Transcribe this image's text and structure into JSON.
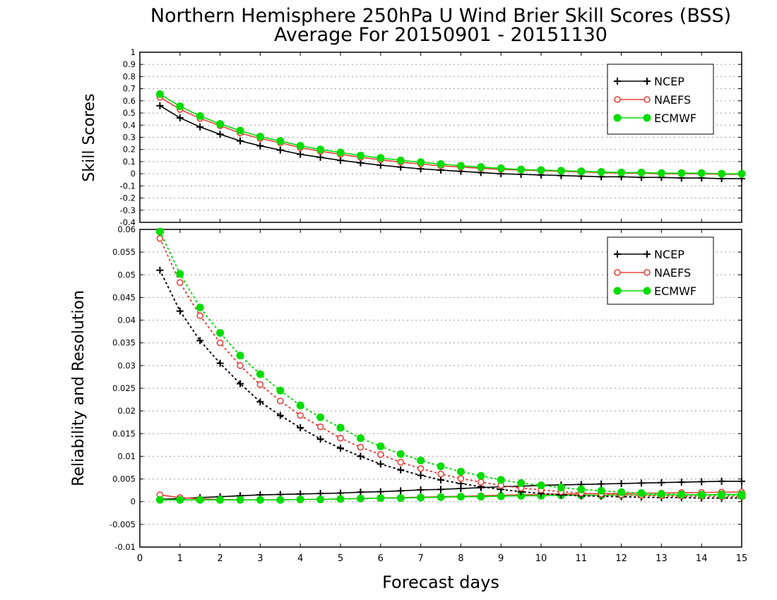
{
  "title_line1": "Northern Hemisphere 250hPa U Wind Brier Skill Scores (BSS)",
  "title_line2": "Average For 20150901 - 20151130",
  "xlabel": "Forecast days",
  "colors": {
    "NCEP": "#000000",
    "NAEFS": "#e8403a",
    "ECMWF": "#00dd00"
  },
  "chart_data": [
    {
      "type": "line",
      "ylabel": "Skill Scores",
      "xlim": [
        0,
        15
      ],
      "ylim": [
        -0.4,
        1
      ],
      "x_ticks": [
        0,
        1,
        2,
        3,
        4,
        5,
        6,
        7,
        8,
        9,
        10,
        11,
        12,
        13,
        14,
        15
      ],
      "y_ticks": [
        -0.4,
        -0.3,
        -0.2,
        -0.1,
        0,
        0.1,
        0.2,
        0.3,
        0.4,
        0.5,
        0.6,
        0.7,
        0.8,
        0.9,
        1
      ],
      "y_tick_labels": [
        "-0.4",
        "-0.3",
        "-0.2",
        "-0.1",
        "0",
        "0.1",
        "0.2",
        "0.3",
        "0.4",
        "0.5",
        "0.6",
        "0.7",
        "0.8",
        "0.9",
        "1"
      ],
      "grid": true,
      "legend_position": "top-right",
      "x": [
        0.5,
        1,
        1.5,
        2,
        2.5,
        3,
        3.5,
        4,
        4.5,
        5,
        5.5,
        6,
        6.5,
        7,
        7.5,
        8,
        8.5,
        9,
        9.5,
        10,
        10.5,
        11,
        11.5,
        12,
        12.5,
        13,
        13.5,
        14,
        14.5,
        15
      ],
      "series": [
        {
          "name": "NCEP",
          "marker": "plus",
          "style": "solid",
          "values": [
            0.56,
            0.46,
            0.385,
            0.325,
            0.27,
            0.23,
            0.195,
            0.16,
            0.135,
            0.11,
            0.09,
            0.07,
            0.055,
            0.04,
            0.03,
            0.02,
            0.01,
            0.0,
            -0.005,
            -0.01,
            -0.015,
            -0.02,
            -0.025,
            -0.025,
            -0.03,
            -0.03,
            -0.035,
            -0.035,
            -0.04,
            -0.04
          ]
        },
        {
          "name": "NAEFS",
          "marker": "circle-open",
          "style": "solid",
          "values": [
            0.63,
            0.53,
            0.455,
            0.395,
            0.335,
            0.29,
            0.255,
            0.215,
            0.185,
            0.16,
            0.135,
            0.115,
            0.095,
            0.08,
            0.065,
            0.055,
            0.045,
            0.035,
            0.03,
            0.025,
            0.02,
            0.015,
            0.01,
            0.005,
            0.005,
            0.0,
            0.0,
            0.0,
            -0.005,
            -0.005
          ]
        },
        {
          "name": "ECMWF",
          "marker": "circle-filled",
          "style": "solid",
          "values": [
            0.655,
            0.555,
            0.475,
            0.41,
            0.355,
            0.305,
            0.27,
            0.23,
            0.2,
            0.175,
            0.15,
            0.13,
            0.11,
            0.095,
            0.08,
            0.065,
            0.055,
            0.045,
            0.035,
            0.03,
            0.025,
            0.02,
            0.015,
            0.01,
            0.01,
            0.005,
            0.005,
            0.005,
            0.0,
            0.0
          ]
        }
      ]
    },
    {
      "type": "line",
      "ylabel": "Reliability and Resolution",
      "xlim": [
        0,
        15
      ],
      "ylim": [
        -0.01,
        0.06
      ],
      "x_ticks": [
        0,
        1,
        2,
        3,
        4,
        5,
        6,
        7,
        8,
        9,
        10,
        11,
        12,
        13,
        14,
        15
      ],
      "y_ticks": [
        -0.01,
        -0.005,
        0,
        0.005,
        0.01,
        0.015,
        0.02,
        0.025,
        0.03,
        0.035,
        0.04,
        0.045,
        0.05,
        0.055,
        0.06
      ],
      "y_tick_labels": [
        "-0.01",
        "-0.005",
        "0",
        "0.005",
        "0.01",
        "0.015",
        "0.02",
        "0.025",
        "0.03",
        "0.035",
        "0.04",
        "0.045",
        "0.05",
        "0.055",
        "0.06"
      ],
      "grid": true,
      "legend_position": "top-right",
      "x": [
        0.5,
        1,
        1.5,
        2,
        2.5,
        3,
        3.5,
        4,
        4.5,
        5,
        5.5,
        6,
        6.5,
        7,
        7.5,
        8,
        8.5,
        9,
        9.5,
        10,
        10.5,
        11,
        11.5,
        12,
        12.5,
        13,
        13.5,
        14,
        14.5,
        15
      ],
      "series": [
        {
          "name": "NCEP",
          "marker": "plus",
          "style": "solid",
          "role": "reliability",
          "values": [
            0.0005,
            0.0007,
            0.0009,
            0.0011,
            0.0013,
            0.0015,
            0.0016,
            0.0017,
            0.0018,
            0.0019,
            0.0021,
            0.0022,
            0.0024,
            0.0026,
            0.0027,
            0.0029,
            0.0031,
            0.0033,
            0.0034,
            0.0036,
            0.0037,
            0.0038,
            0.0039,
            0.004,
            0.0041,
            0.0042,
            0.0043,
            0.0044,
            0.0045,
            0.0045
          ]
        },
        {
          "name": "NAEFS",
          "marker": "circle-open",
          "style": "solid",
          "role": "reliability",
          "values": [
            0.0015,
            0.0009,
            0.0006,
            0.0005,
            0.0004,
            0.0004,
            0.0004,
            0.0005,
            0.0005,
            0.0006,
            0.0007,
            0.0008,
            0.0009,
            0.001,
            0.0011,
            0.0012,
            0.0013,
            0.0014,
            0.0015,
            0.0016,
            0.0017,
            0.0017,
            0.0018,
            0.0018,
            0.0019,
            0.0019,
            0.002,
            0.002,
            0.0021,
            0.0021
          ]
        },
        {
          "name": "ECMWF",
          "marker": "circle-filled",
          "style": "solid",
          "role": "reliability",
          "values": [
            0.0004,
            0.0004,
            0.0004,
            0.0004,
            0.0004,
            0.0004,
            0.0004,
            0.0005,
            0.0005,
            0.0006,
            0.0007,
            0.0008,
            0.0008,
            0.0009,
            0.001,
            0.0011,
            0.0011,
            0.0012,
            0.0013,
            0.0013,
            0.0014,
            0.0014,
            0.0014,
            0.0015,
            0.0015,
            0.0015,
            0.0015,
            0.0015,
            0.0016,
            0.0016
          ]
        },
        {
          "name": "NCEP",
          "marker": "plus",
          "style": "dotted",
          "role": "resolution",
          "values": [
            0.051,
            0.042,
            0.0355,
            0.0305,
            0.026,
            0.022,
            0.019,
            0.0163,
            0.0138,
            0.0118,
            0.01,
            0.0083,
            0.007,
            0.0058,
            0.0048,
            0.004,
            0.0033,
            0.0027,
            0.0022,
            0.0018,
            0.0015,
            0.0013,
            0.0012,
            0.0011,
            0.001,
            0.0009,
            0.0009,
            0.0008,
            0.0008,
            0.0008
          ]
        },
        {
          "name": "NAEFS",
          "marker": "circle-open",
          "style": "dotted",
          "role": "resolution",
          "values": [
            0.058,
            0.0483,
            0.041,
            0.035,
            0.03,
            0.0258,
            0.0222,
            0.019,
            0.0165,
            0.014,
            0.012,
            0.0104,
            0.0087,
            0.0073,
            0.0061,
            0.0051,
            0.0043,
            0.0036,
            0.003,
            0.0026,
            0.0022,
            0.0019,
            0.0017,
            0.0015,
            0.0014,
            0.0013,
            0.0012,
            0.0012,
            0.0011,
            0.0011
          ]
        },
        {
          "name": "ECMWF",
          "marker": "circle-filled",
          "style": "dotted",
          "role": "resolution",
          "values": [
            0.0595,
            0.0502,
            0.0428,
            0.0372,
            0.0322,
            0.0281,
            0.0245,
            0.0212,
            0.0186,
            0.0163,
            0.014,
            0.0122,
            0.0105,
            0.0091,
            0.0078,
            0.0066,
            0.0057,
            0.0048,
            0.0041,
            0.0036,
            0.0031,
            0.0027,
            0.0024,
            0.0021,
            0.0019,
            0.0017,
            0.0016,
            0.0015,
            0.0014,
            0.0013
          ]
        }
      ]
    }
  ]
}
